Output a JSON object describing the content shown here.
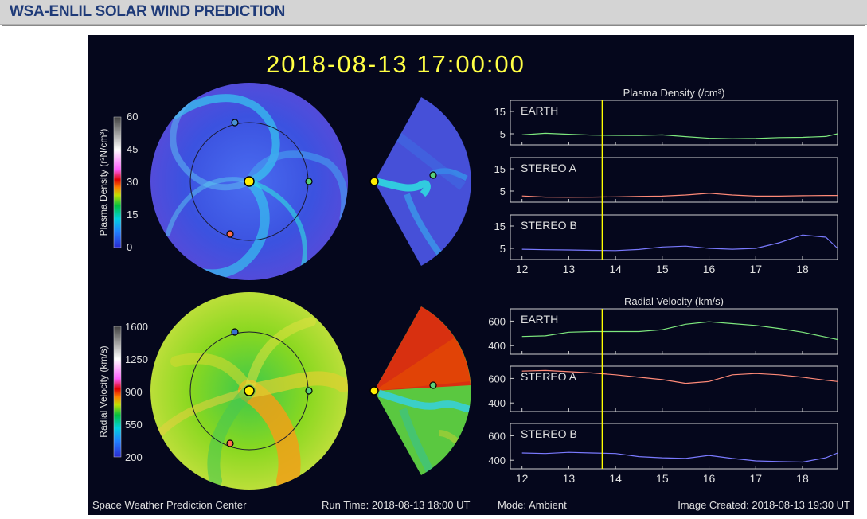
{
  "page": {
    "header_title": "WSA-ENLIL SOLAR WIND PREDICTION",
    "timestamp": "2018-08-13  17:00:00",
    "footer": {
      "center": "Space Weather Prediction Center",
      "run_time": "Run Time: 2018-08-13 18:00 UT",
      "mode": "Mode: Ambient",
      "image_created": "Image Created: 2018-08-13 19:30 UT"
    }
  },
  "maps": {
    "density": {
      "colorbar_label": "Plasma Density (r²N/cm³)",
      "colorbar_ticks": [
        "60",
        "45",
        "30",
        "15",
        "0"
      ],
      "base_color": "#3b52e0",
      "accent_color": "#2fd0f5"
    },
    "velocity": {
      "colorbar_label": "Radial Velocity (km/s)",
      "colorbar_ticks": [
        "1600",
        "1250",
        "900",
        "550",
        "200"
      ],
      "base_color": "#7fd61e",
      "accent_color": "#f0a020"
    }
  },
  "chart_data": [
    {
      "type": "line",
      "title": "Plasma Density (/cm³)",
      "x": [
        12,
        12.5,
        13,
        13.5,
        14,
        14.5,
        15,
        15.5,
        16,
        16.5,
        17,
        17.5,
        18,
        18.5,
        18.75
      ],
      "xlim": [
        11.75,
        18.75
      ],
      "xticks": [
        "12",
        "13",
        "14",
        "15",
        "16",
        "17",
        "18"
      ],
      "current_time_marker": 13.72,
      "panels": [
        {
          "name": "EARTH",
          "color": "#7ee87e",
          "yticks": [
            15,
            5
          ],
          "ylim": [
            0,
            20
          ],
          "values": [
            4.5,
            5.2,
            4.8,
            4.4,
            4.3,
            4.2,
            4.5,
            3.7,
            3.0,
            2.8,
            2.9,
            3.3,
            3.4,
            3.8,
            5.0
          ]
        },
        {
          "name": "STEREO A",
          "color": "#ff8a78",
          "yticks": [
            15,
            5
          ],
          "ylim": [
            0,
            20
          ],
          "values": [
            2.8,
            2.3,
            2.2,
            2.3,
            2.4,
            2.6,
            2.7,
            3.2,
            4.0,
            3.2,
            2.7,
            2.7,
            2.9,
            3.0,
            3.0
          ]
        },
        {
          "name": "STEREO B",
          "color": "#7a7aff",
          "yticks": [
            15,
            5
          ],
          "ylim": [
            0,
            20
          ],
          "values": [
            4.6,
            4.4,
            4.3,
            4.1,
            4.0,
            4.5,
            5.6,
            6.0,
            5.0,
            4.6,
            5.0,
            7.5,
            11.0,
            10.0,
            5.0
          ]
        }
      ]
    },
    {
      "type": "line",
      "title": "Radial Velocity (km/s)",
      "x": [
        12,
        12.5,
        13,
        13.5,
        14,
        14.5,
        15,
        15.5,
        16,
        16.5,
        17,
        17.5,
        18,
        18.5,
        18.75
      ],
      "xlim": [
        11.75,
        18.75
      ],
      "xticks": [
        "12",
        "13",
        "14",
        "15",
        "16",
        "17",
        "18"
      ],
      "current_time_marker": 13.72,
      "panels": [
        {
          "name": "EARTH",
          "color": "#7ee87e",
          "yticks": [
            600,
            400
          ],
          "ylim": [
            330,
            700
          ],
          "values": [
            475,
            480,
            510,
            515,
            515,
            515,
            530,
            575,
            595,
            580,
            565,
            540,
            510,
            470,
            450
          ]
        },
        {
          "name": "STEREO A",
          "color": "#ff8a78",
          "yticks": [
            600,
            400
          ],
          "ylim": [
            330,
            700
          ],
          "values": [
            660,
            665,
            655,
            645,
            630,
            610,
            590,
            560,
            575,
            630,
            640,
            630,
            610,
            585,
            575
          ]
        },
        {
          "name": "STEREO B",
          "color": "#7a7aff",
          "yticks": [
            600,
            400
          ],
          "ylim": [
            330,
            700
          ],
          "values": [
            460,
            455,
            465,
            460,
            455,
            430,
            420,
            415,
            440,
            415,
            395,
            390,
            385,
            420,
            460
          ]
        }
      ]
    }
  ]
}
